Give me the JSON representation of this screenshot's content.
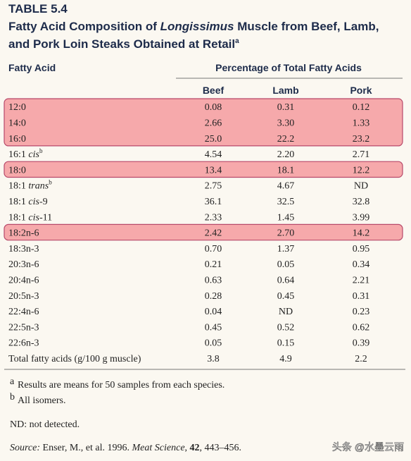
{
  "table_label": "TABLE 5.4",
  "title_line1": {
    "text": "Fatty Acid Composition of ",
    "italic": "Longissimus",
    "rest": " Muscle from Beef, Lamb,"
  },
  "title_line2": {
    "text": "and Pork Loin Steaks Obtained at Retail",
    "sup": "a"
  },
  "table": {
    "row_header": "Fatty Acid",
    "group_header": "Percentage of Total Fatty Acids",
    "columns": [
      "Beef",
      "Lamb",
      "Pork"
    ],
    "rows": [
      {
        "name": "12:0",
        "values": [
          "0.08",
          "0.31",
          "0.12"
        ],
        "highlighted": true
      },
      {
        "name": "14:0",
        "values": [
          "2.66",
          "3.30",
          "1.33"
        ],
        "highlighted": true
      },
      {
        "name": "16:0",
        "values": [
          "25.0",
          "22.2",
          "23.2"
        ],
        "highlighted": true
      },
      {
        "name": "16:1 ",
        "italic": "cis",
        "sup": "b",
        "values": [
          "4.54",
          "2.20",
          "2.71"
        ]
      },
      {
        "name": "18:0",
        "values": [
          "13.4",
          "18.1",
          "12.2"
        ],
        "highlighted": true
      },
      {
        "name": "18:1 ",
        "italic": "trans",
        "sup": "b",
        "values": [
          "2.75",
          "4.67",
          "ND"
        ]
      },
      {
        "name": "18:1 ",
        "italic": "cis",
        "suffix": "-9",
        "values": [
          "36.1",
          "32.5",
          "32.8"
        ]
      },
      {
        "name": "18:1 ",
        "italic": "cis",
        "suffix": "-11",
        "values": [
          "2.33",
          "1.45",
          "3.99"
        ]
      },
      {
        "name": "18:2n-6",
        "values": [
          "2.42",
          "2.70",
          "14.2"
        ],
        "highlighted": true
      },
      {
        "name": "18:3n-3",
        "values": [
          "0.70",
          "1.37",
          "0.95"
        ]
      },
      {
        "name": "20:3n-6",
        "values": [
          "0.21",
          "0.05",
          "0.34"
        ]
      },
      {
        "name": "20:4n-6",
        "values": [
          "0.63",
          "0.64",
          "2.21"
        ]
      },
      {
        "name": "20:5n-3",
        "values": [
          "0.28",
          "0.45",
          "0.31"
        ]
      },
      {
        "name": "22:4n-6",
        "values": [
          "0.04",
          "ND",
          "0.23"
        ]
      },
      {
        "name": "22:5n-3",
        "values": [
          "0.45",
          "0.52",
          "0.62"
        ]
      },
      {
        "name": "22:6n-3",
        "values": [
          "0.05",
          "0.15",
          "0.39"
        ]
      },
      {
        "name": "Total fatty acids (g/100 g muscle)",
        "values": [
          "3.8",
          "4.9",
          "2.2"
        ]
      }
    ]
  },
  "footnotes": [
    {
      "mark": "a",
      "text": "Results are means for 50 samples from each species."
    },
    {
      "mark": "b",
      "text": "All isomers."
    }
  ],
  "abbreviation": "ND: not detected.",
  "source": {
    "label": "Source:",
    "authors": " Enser, M., et al. 1996. ",
    "journal": "Meat Science",
    "sep": ", ",
    "volume": "42",
    "pages": ", 443–456."
  },
  "watermark": "头条 @水墨云雨"
}
